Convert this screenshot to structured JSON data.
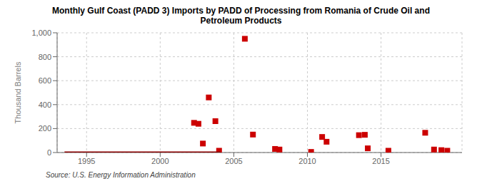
{
  "chart_data": {
    "type": "scatter",
    "title": "Monthly Gulf Coast (PADD 3) Imports by PADD of Processing from Romania of Crude Oil and\nPetroleum Products",
    "y_label": "Thousand Barrels",
    "annotations": [
      "Source: U.S. Energy Information Administration"
    ],
    "xlim": [
      1993.0,
      2020.5
    ],
    "xticks": [
      1995,
      2000,
      2005,
      2010,
      2015
    ],
    "ylim": [
      0,
      1000
    ],
    "yticks": [
      0,
      200,
      400,
      600,
      800,
      {
        "value": 1000,
        "label": "1,000"
      }
    ],
    "grid": true,
    "series": [
      {
        "type": "scatter",
        "marker": "square",
        "color": "#cc0000",
        "x": [
          2002.3,
          2002.6,
          2002.9,
          2003.3,
          2003.75,
          2004.0,
          2005.75,
          2006.3,
          2007.8,
          2008.1,
          2010.25,
          2011.0,
          2011.3,
          2013.5,
          2013.9,
          2014.1,
          2015.5,
          2018.0,
          2018.6,
          2019.1,
          2019.5
        ],
        "values": [
          248,
          240,
          75,
          460,
          262,
          15,
          950,
          150,
          30,
          25,
          5,
          130,
          90,
          145,
          148,
          35,
          15,
          165,
          25,
          20,
          15
        ]
      },
      {
        "type": "line",
        "color": "#8B0000",
        "x": [
          1993.5,
          2004.1
        ],
        "values": [
          0,
          0
        ]
      }
    ]
  }
}
